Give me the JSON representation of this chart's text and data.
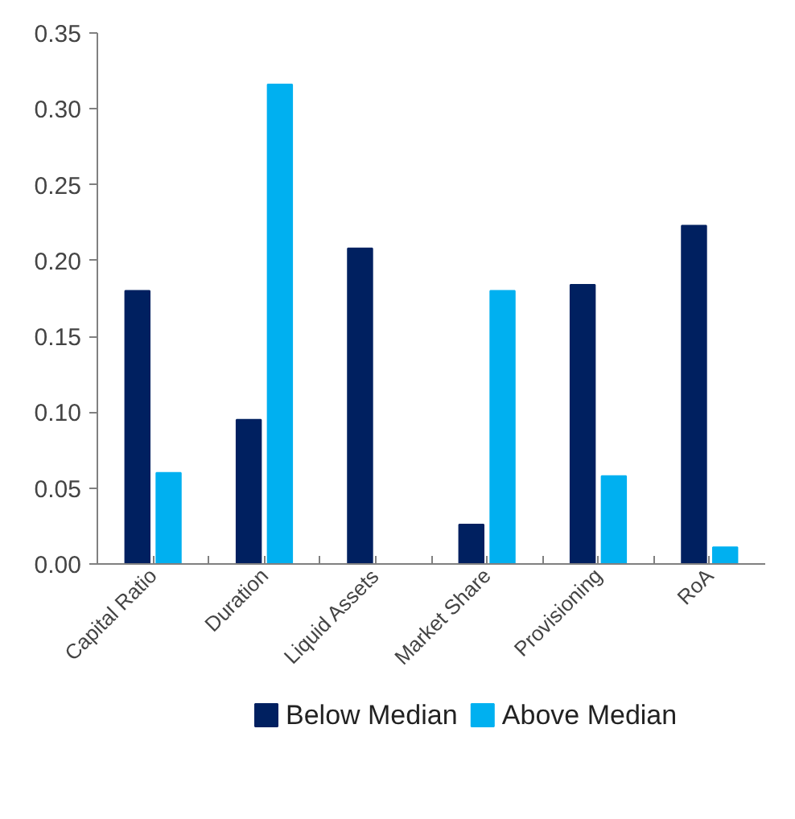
{
  "chart_data": {
    "type": "bar",
    "categories": [
      "Capital Ratio",
      "Duration",
      "Liquid Assets",
      "Market Share",
      "Provisioning",
      "RoA"
    ],
    "series": [
      {
        "name": "Below Median",
        "color": "#002060",
        "values": [
          0.18,
          0.095,
          0.208,
          0.026,
          0.184,
          0.223
        ]
      },
      {
        "name": "Above Median",
        "color": "#00b0f0",
        "values": [
          0.06,
          0.316,
          null,
          0.18,
          0.058,
          0.011
        ]
      }
    ],
    "ylim": [
      0,
      0.35
    ],
    "yticks": [
      {
        "value": 0,
        "label": "0.00"
      },
      0.05,
      {
        "value": 0.1,
        "label": "0.10"
      },
      0.15,
      {
        "value": 0.2,
        "label": "0.20"
      },
      0.25,
      {
        "value": 0.3,
        "label": "0.30"
      },
      0.35
    ],
    "grid": false,
    "legend": "bottom"
  }
}
